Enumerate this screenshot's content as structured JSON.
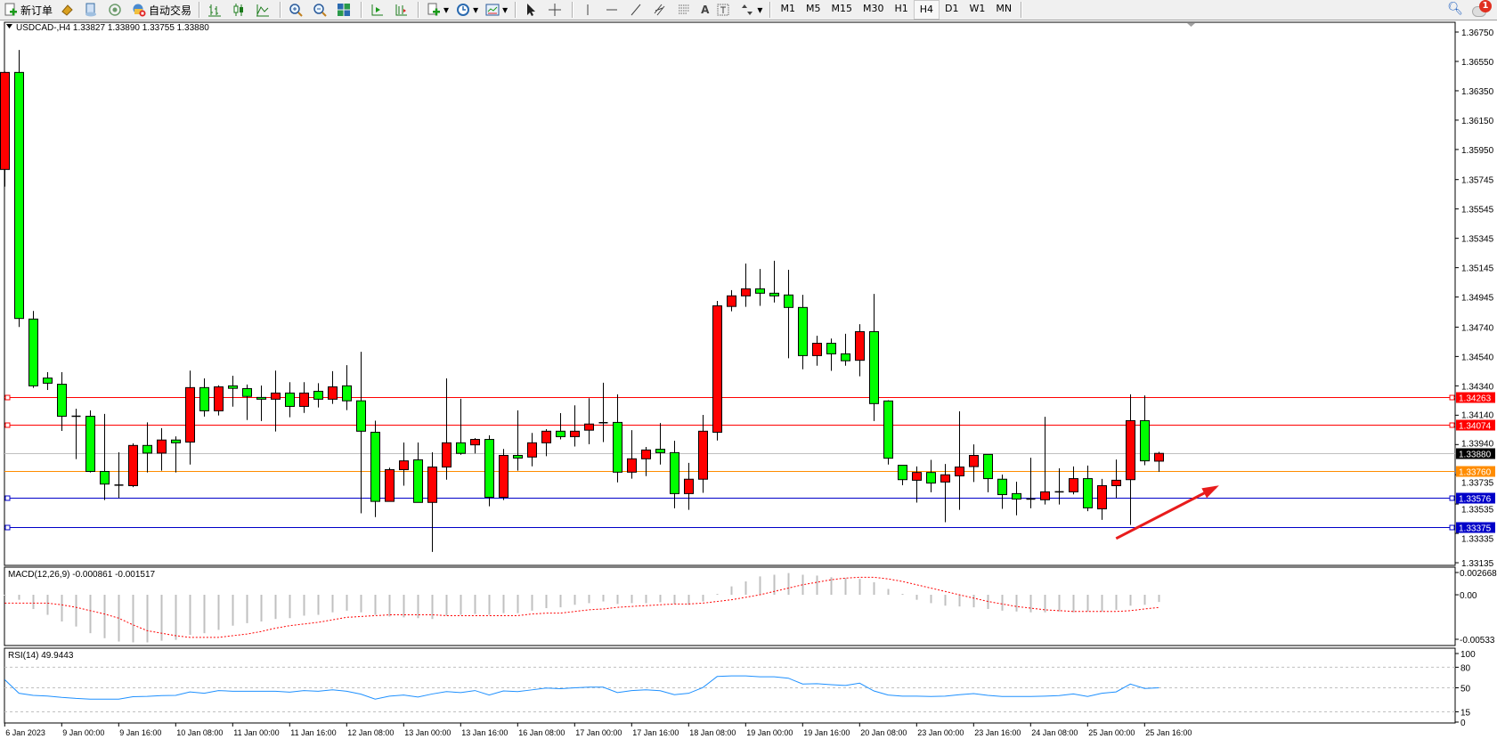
{
  "toolbar": {
    "new_order_label": "新订单",
    "auto_trading_label": "自动交易",
    "icons": [
      "new-order-icon",
      "history-center-icon",
      "navigator-icon",
      "signals-icon",
      "auto-trading-icon",
      "bar-chart-icon",
      "candlestick-chart-icon",
      "line-chart-icon",
      "zoom-in-icon",
      "zoom-out-icon",
      "tile-windows-icon",
      "auto-scroll-icon",
      "chart-shift-icon",
      "indicators-icon",
      "periods-icon",
      "templates-icon",
      "cursor-icon",
      "crosshair-icon",
      "vertical-line-icon",
      "horizontal-line-icon",
      "trendline-icon",
      "equidistant-channel-icon",
      "fibonacci-icon",
      "text-icon",
      "text-label-icon",
      "arrows-icon"
    ],
    "text_tool_label": "A",
    "periods": [
      "M1",
      "M5",
      "M15",
      "M30",
      "H1",
      "H4",
      "D1",
      "W1",
      "MN"
    ],
    "selected_period": "H4",
    "notification_count": "1"
  },
  "chart": {
    "header": "USDCAD-,H4  1.33827 1.33890 1.33755 1.33880",
    "colors": {
      "bull": "#ff0000",
      "bear": "#00ff00",
      "outline": "#000000",
      "macd_hist": "#c0c0c0",
      "macd_signal": "#ff0000",
      "rsi": "#1e90ff",
      "arrow": "#e81c1c"
    },
    "price_ticks": [
      "1.36750",
      "1.36550",
      "1.36350",
      "1.36150",
      "1.35950",
      "1.35745",
      "1.35545",
      "1.35345",
      "1.35145",
      "1.34945",
      "1.34740",
      "1.34540",
      "1.34340",
      "1.34140",
      "1.33940",
      "1.33735",
      "1.33535",
      "1.33335",
      "1.33135"
    ],
    "price_range": [
      1.33135,
      1.3675
    ],
    "levels": [
      {
        "price": "1.34263",
        "color": "#ff0000",
        "handles": true
      },
      {
        "price": "1.34074",
        "color": "#ff0000",
        "handles": true
      },
      {
        "price": "1.33880",
        "color": "#c0c0c0",
        "label_bg": "#000000",
        "handles": false
      },
      {
        "price": "1.33760",
        "color": "#ff8c00",
        "handles": false
      },
      {
        "price": "1.33576",
        "color": "#0000c8",
        "handles": true
      },
      {
        "price": "1.33375",
        "color": "#0000c8",
        "handles": true
      }
    ],
    "time_labels": [
      "6 Jan 2023",
      "9 Jan 00:00",
      "9 Jan 16:00",
      "10 Jan 08:00",
      "11 Jan 00:00",
      "11 Jan 16:00",
      "12 Jan 08:00",
      "13 Jan 00:00",
      "13 Jan 16:00",
      "16 Jan 08:00",
      "17 Jan 00:00",
      "17 Jan 16:00",
      "18 Jan 08:00",
      "19 Jan 00:00",
      "19 Jan 16:00",
      "20 Jan 08:00",
      "23 Jan 00:00",
      "23 Jan 16:00",
      "24 Jan 08:00",
      "25 Jan 00:00",
      "25 Jan 16:00"
    ],
    "ohlc": [
      [
        1.35814,
        1.3648,
        1.35697,
        1.36475
      ],
      [
        1.36475,
        1.36628,
        1.34741,
        1.34799
      ],
      [
        1.34795,
        1.3485,
        1.34326,
        1.3434
      ],
      [
        1.34393,
        1.34433,
        1.34312,
        1.34358
      ],
      [
        1.34351,
        1.34433,
        1.34033,
        1.34133
      ],
      [
        1.34133,
        1.34184,
        1.33841,
        1.34133
      ],
      [
        1.34133,
        1.34173,
        1.3375,
        1.33757
      ],
      [
        1.33757,
        1.34149,
        1.33562,
        1.33671
      ],
      [
        1.33664,
        1.33887,
        1.33576,
        1.33664
      ],
      [
        1.3366,
        1.33948,
        1.3365,
        1.33934
      ],
      [
        1.33934,
        1.34091,
        1.3375,
        1.33882
      ],
      [
        1.33882,
        1.34052,
        1.33762,
        1.33971
      ],
      [
        1.33971,
        1.33996,
        1.3375,
        1.33952
      ],
      [
        1.33957,
        1.34444,
        1.33804,
        1.34328
      ],
      [
        1.34328,
        1.34391,
        1.34131,
        1.3417
      ],
      [
        1.3417,
        1.34344,
        1.34138,
        1.34333
      ],
      [
        1.3434,
        1.34409,
        1.34198,
        1.34323
      ],
      [
        1.34321,
        1.34349,
        1.34107,
        1.34268
      ],
      [
        1.34261,
        1.34342,
        1.341,
        1.34249
      ],
      [
        1.34249,
        1.34444,
        1.34029,
        1.34291
      ],
      [
        1.34291,
        1.34365,
        1.34126,
        1.342
      ],
      [
        1.342,
        1.34365,
        1.34156,
        1.34291
      ],
      [
        1.34303,
        1.34358,
        1.34193,
        1.34249
      ],
      [
        1.34249,
        1.3444,
        1.34217,
        1.34333
      ],
      [
        1.3434,
        1.34481,
        1.34175,
        1.34238
      ],
      [
        1.34238,
        1.34572,
        1.33472,
        1.34031
      ],
      [
        1.34024,
        1.34103,
        1.33446,
        1.33553
      ],
      [
        1.33553,
        1.33783,
        1.33553,
        1.33769
      ],
      [
        1.33769,
        1.33954,
        1.3366,
        1.33829
      ],
      [
        1.33836,
        1.33954,
        1.33546,
        1.33546
      ],
      [
        1.33546,
        1.33887,
        1.33209,
        1.33787
      ],
      [
        1.33787,
        1.34391,
        1.33701,
        1.33952
      ],
      [
        1.33952,
        1.34252,
        1.33871,
        1.3388
      ],
      [
        1.33938,
        1.33984,
        1.3388,
        1.33975
      ],
      [
        1.33975,
        1.34003,
        1.3352,
        1.33581
      ],
      [
        1.33581,
        1.3391,
        1.33562,
        1.33866
      ],
      [
        1.33866,
        1.34173,
        1.33762,
        1.33848
      ],
      [
        1.33855,
        1.34019,
        1.33792,
        1.33952
      ],
      [
        1.33952,
        1.34045,
        1.33861,
        1.34031
      ],
      [
        1.34031,
        1.34154,
        1.33975,
        1.33994
      ],
      [
        1.33994,
        1.34207,
        1.33927,
        1.34031
      ],
      [
        1.34038,
        1.34256,
        1.33943,
        1.3408
      ],
      [
        1.34089,
        1.34361,
        1.33957,
        1.34089
      ],
      [
        1.34091,
        1.34282,
        1.33683,
        1.33752
      ],
      [
        1.33752,
        1.34038,
        1.33708,
        1.33843
      ],
      [
        1.33843,
        1.33924,
        1.33725,
        1.33903
      ],
      [
        1.33908,
        1.34087,
        1.33804,
        1.33885
      ],
      [
        1.33885,
        1.33966,
        1.33506,
        1.33606
      ],
      [
        1.33606,
        1.33815,
        1.33495,
        1.33704
      ],
      [
        1.33704,
        1.34142,
        1.33611,
        1.34031
      ],
      [
        1.34024,
        1.34918,
        1.33968,
        1.34885
      ],
      [
        1.34881,
        1.34992,
        1.34848,
        1.34953
      ],
      [
        1.34953,
        1.35173,
        1.34878,
        1.35001
      ],
      [
        1.35001,
        1.35136,
        1.34885,
        1.34971
      ],
      [
        1.34971,
        1.35192,
        1.34908,
        1.34953
      ],
      [
        1.34959,
        1.35131,
        1.34528,
        1.34874
      ],
      [
        1.34874,
        1.3496,
        1.34453,
        1.34546
      ],
      [
        1.34546,
        1.34681,
        1.34477,
        1.3463
      ],
      [
        1.3463,
        1.34662,
        1.34442,
        1.34558
      ],
      [
        1.34558,
        1.34695,
        1.34477,
        1.34511
      ],
      [
        1.34514,
        1.3476,
        1.34405,
        1.34709
      ],
      [
        1.34709,
        1.34966,
        1.341,
        1.34219
      ],
      [
        1.34237,
        1.34242,
        1.33804,
        1.33847
      ],
      [
        1.33799,
        1.33799,
        1.33663,
        1.33701
      ],
      [
        1.33697,
        1.33791,
        1.33545,
        1.3375
      ],
      [
        1.3375,
        1.33836,
        1.33615,
        1.33678
      ],
      [
        1.33685,
        1.33808,
        1.33411,
        1.33734
      ],
      [
        1.33727,
        1.34166,
        1.33495,
        1.33787
      ],
      [
        1.3379,
        1.33941,
        1.33685,
        1.33866
      ],
      [
        1.33873,
        1.33873,
        1.33615,
        1.33708
      ],
      [
        1.33704,
        1.33736,
        1.33502,
        1.33599
      ],
      [
        1.33606,
        1.33687,
        1.33458,
        1.33569
      ],
      [
        1.33569,
        1.3385,
        1.33506,
        1.33564
      ],
      [
        1.33564,
        1.34129,
        1.33532,
        1.33618
      ],
      [
        1.33618,
        1.33778,
        1.33532,
        1.33618
      ],
      [
        1.33618,
        1.33791,
        1.33601,
        1.33708
      ],
      [
        1.33708,
        1.33797,
        1.33486,
        1.33509
      ],
      [
        1.33502,
        1.33706,
        1.33427,
        1.3366
      ],
      [
        1.3366,
        1.33838,
        1.33576,
        1.33697
      ],
      [
        1.33701,
        1.34282,
        1.33393,
        1.34103
      ],
      [
        1.34103,
        1.34275,
        1.33799,
        1.33829
      ],
      [
        1.33827,
        1.3389,
        1.33755,
        1.3388
      ]
    ],
    "arrow": {
      "from": {
        "bar": 78,
        "price": 1.333
      },
      "to": {
        "bar": 85,
        "price": 1.3365
      }
    }
  },
  "macd": {
    "label": "MACD(12,26,9) -0.000861 -0.001517",
    "ticks": [
      "0.002668",
      "0.00",
      "-0.00533"
    ],
    "range": [
      -0.00533,
      0.002668
    ],
    "histogram": [
      -0.0001,
      -0.0006,
      -0.0017,
      -0.0024,
      -0.0032,
      -0.0038,
      -0.0046,
      -0.0052,
      -0.0056,
      -0.0057,
      -0.0057,
      -0.0055,
      -0.0054,
      -0.0048,
      -0.0046,
      -0.0042,
      -0.0037,
      -0.0034,
      -0.0032,
      -0.0029,
      -0.0028,
      -0.0025,
      -0.0024,
      -0.0021,
      -0.0019,
      -0.0021,
      -0.0024,
      -0.0026,
      -0.0027,
      -0.0028,
      -0.0029,
      -0.0025,
      -0.0024,
      -0.0023,
      -0.0024,
      -0.0022,
      -0.0022,
      -0.0019,
      -0.0016,
      -0.0015,
      -0.0012,
      -0.001,
      -0.0008,
      -0.0011,
      -0.001,
      -0.001,
      -0.0009,
      -0.0011,
      -0.0012,
      -0.0008,
      0.0001,
      0.001,
      0.0016,
      0.0022,
      0.0024,
      0.0026,
      0.0024,
      0.0023,
      0.0021,
      0.002,
      0.0019,
      0.0015,
      0.0007,
      0.0,
      -0.0006,
      -0.001,
      -0.0013,
      -0.0014,
      -0.0015,
      -0.0017,
      -0.0019,
      -0.002,
      -0.0021,
      -0.0021,
      -0.002,
      -0.0021,
      -0.002,
      -0.002,
      -0.0018,
      -0.0013,
      -0.0012,
      -0.000861
    ],
    "signal": [
      -0.001,
      -0.001,
      -0.001,
      -0.001,
      -0.0012,
      -0.0015,
      -0.0019,
      -0.0023,
      -0.0028,
      -0.0036,
      -0.0043,
      -0.0046,
      -0.0049,
      -0.0051,
      -0.0051,
      -0.0051,
      -0.0049,
      -0.0047,
      -0.0044,
      -0.004,
      -0.0037,
      -0.0035,
      -0.0033,
      -0.003,
      -0.0027,
      -0.0026,
      -0.0025,
      -0.0024,
      -0.0024,
      -0.0024,
      -0.0024,
      -0.0025,
      -0.0025,
      -0.0025,
      -0.0025,
      -0.0025,
      -0.0025,
      -0.0023,
      -0.0022,
      -0.0022,
      -0.002,
      -0.0018,
      -0.0017,
      -0.0015,
      -0.0014,
      -0.0013,
      -0.0012,
      -0.0011,
      -0.0011,
      -0.001,
      -0.0008,
      -0.0006,
      -0.0003,
      0.0,
      0.0004,
      0.0008,
      0.0012,
      0.0015,
      0.0018,
      0.002,
      0.0021,
      0.0021,
      0.0019,
      0.0016,
      0.0012,
      0.0008,
      0.0004,
      0.0,
      -0.0004,
      -0.0008,
      -0.0011,
      -0.0014,
      -0.0016,
      -0.0018,
      -0.0019,
      -0.002,
      -0.002,
      -0.002,
      -0.002,
      -0.0019,
      -0.0017,
      -0.001517
    ]
  },
  "rsi": {
    "label": "RSI(14) 49.9443",
    "ticks": [
      "100",
      "80",
      "50",
      "15",
      "0"
    ],
    "levels": [
      80,
      50,
      15
    ],
    "values": [
      61.8,
      42,
      39,
      38,
      36,
      34.5,
      33.5,
      33.5,
      33.5,
      37,
      37.5,
      38.6,
      39,
      44,
      42,
      46,
      45,
      45,
      45,
      45,
      43.7,
      46,
      45,
      47,
      45,
      40.7,
      33.5,
      37.8,
      39.5,
      36.5,
      41,
      44.5,
      43,
      46,
      39.5,
      45.4,
      44.5,
      47,
      49.6,
      48.7,
      50,
      51,
      51,
      43,
      46,
      47,
      45.8,
      40,
      42,
      50.4,
      66.5,
      67.3,
      67.3,
      66,
      66,
      64,
      55.5,
      56,
      54.6,
      53.4,
      56.8,
      45.4,
      39.5,
      37.8,
      37.8,
      37.3,
      37.8,
      40,
      41.6,
      39,
      37.3,
      37.3,
      37.3,
      37.8,
      38.6,
      41,
      37.3,
      42,
      44,
      55.5,
      49,
      49.9443
    ]
  }
}
